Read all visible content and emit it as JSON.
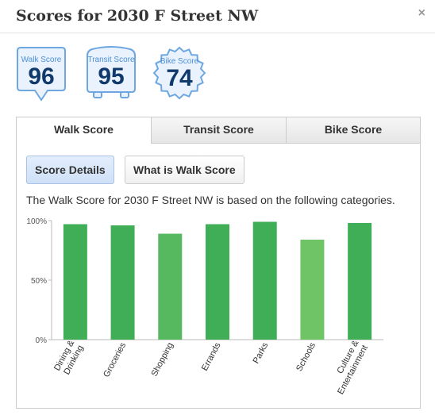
{
  "header": {
    "title": "Scores for 2030 F Street NW",
    "close_label": "×"
  },
  "badges": [
    {
      "label": "Walk Score",
      "value": "96"
    },
    {
      "label": "Transit Score",
      "value": "95"
    },
    {
      "label": "Bike Score",
      "value": "74"
    }
  ],
  "tabs": [
    {
      "label": "Walk Score",
      "active": true
    },
    {
      "label": "Transit Score",
      "active": false
    },
    {
      "label": "Bike Score",
      "active": false
    }
  ],
  "buttons": {
    "details": "Score Details",
    "what_is": "What is Walk Score"
  },
  "description": "The Walk Score for 2030 F Street NW is based on the following categories.",
  "colors": {
    "badge_blue": "#4a8fd6",
    "badge_text": "#0f3a6b",
    "bar_dark": "#3fae56",
    "bar_mid": "#56b95f",
    "bar_light": "#6fc466"
  },
  "chart_data": {
    "type": "bar",
    "categories": [
      "Dining & Drinking",
      "Groceries",
      "Shopping",
      "Errands",
      "Parks",
      "Schools",
      "Culture & Entertainment"
    ],
    "values": [
      97,
      96,
      89,
      97,
      99,
      84,
      98
    ],
    "ytick_labels": [
      "100%",
      "50%",
      "0%"
    ],
    "ylim": [
      0,
      100
    ],
    "grid": false
  }
}
